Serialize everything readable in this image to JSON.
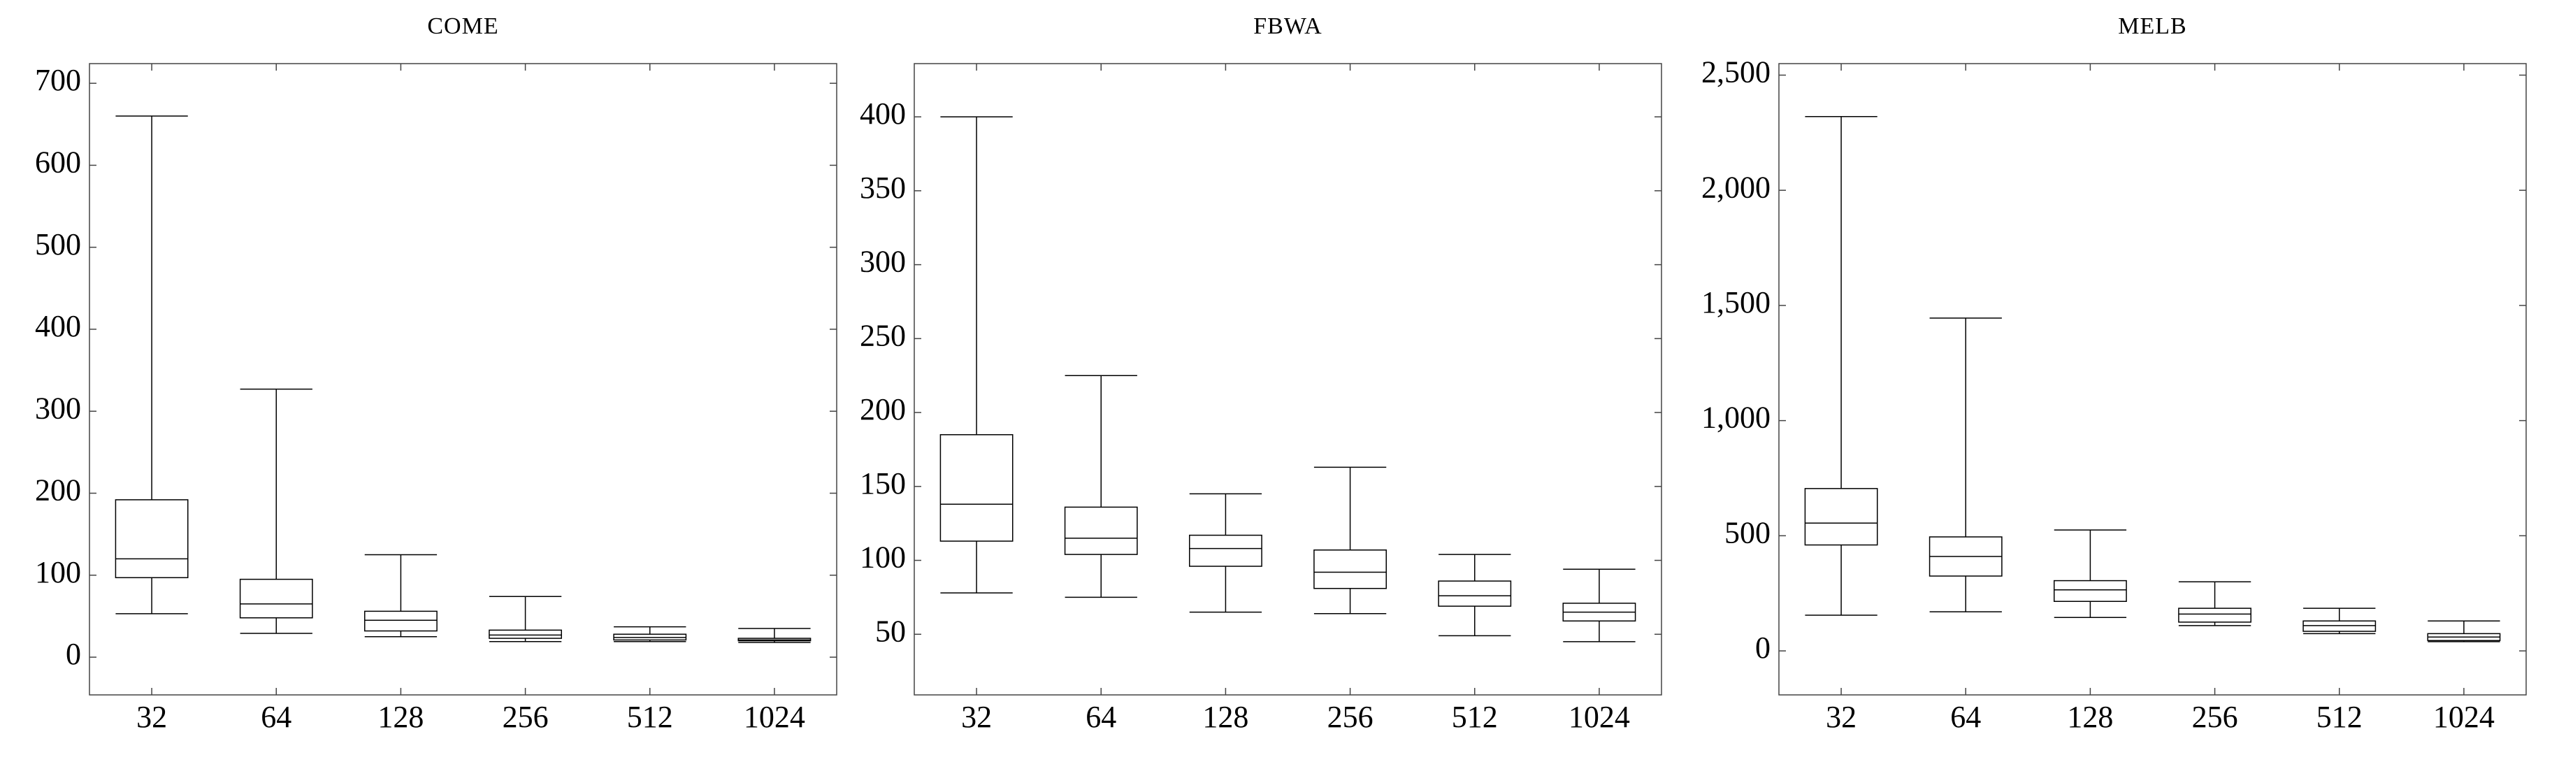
{
  "chart_data": [
    {
      "type": "box",
      "title": "COME",
      "categories": [
        "32",
        "64",
        "128",
        "256",
        "512",
        "1024"
      ],
      "min": [
        53,
        29,
        25,
        19,
        19,
        18
      ],
      "q1": [
        97,
        48,
        32,
        23,
        21,
        20
      ],
      "median": [
        120,
        65,
        45,
        27,
        24,
        21
      ],
      "q3": [
        192,
        95,
        56,
        33,
        28,
        23
      ],
      "max": [
        660,
        327,
        125,
        74,
        37,
        35
      ],
      "ylim": [
        -46,
        724
      ],
      "yticks": [
        0,
        100,
        200,
        300,
        400,
        500,
        600,
        700
      ],
      "color": "#000000"
    },
    {
      "type": "box",
      "title": "FBWA",
      "categories": [
        "32",
        "64",
        "128",
        "256",
        "512",
        "1024"
      ],
      "min": [
        78,
        75,
        65,
        64,
        49,
        45
      ],
      "q1": [
        113,
        104,
        96,
        81,
        69,
        59
      ],
      "median": [
        138,
        115,
        108,
        92,
        76,
        65
      ],
      "q3": [
        185,
        136,
        117,
        107,
        86,
        71
      ],
      "max": [
        400,
        225,
        145,
        163,
        104,
        94
      ],
      "ylim": [
        9,
        436
      ],
      "yticks": [
        50,
        100,
        150,
        200,
        250,
        300,
        350,
        400
      ],
      "color": "#000000"
    },
    {
      "type": "box",
      "title": "MELB",
      "categories": [
        "32",
        "64",
        "128",
        "256",
        "512",
        "1024"
      ],
      "min": [
        155,
        170,
        145,
        110,
        75,
        40
      ],
      "q1": [
        460,
        325,
        215,
        125,
        85,
        45
      ],
      "median": [
        555,
        410,
        265,
        160,
        110,
        60
      ],
      "q3": [
        705,
        495,
        305,
        185,
        130,
        75
      ],
      "max": [
        2320,
        1445,
        525,
        300,
        185,
        130
      ],
      "ylim": [
        -191,
        2550
      ],
      "yticks": [
        0,
        500,
        {
          "value": 1000,
          "label": "1,000"
        },
        {
          "value": 1500,
          "label": "1,500"
        },
        {
          "value": 2000,
          "label": "2,000"
        },
        {
          "value": 2500,
          "label": "2,500"
        }
      ],
      "color": "#000000"
    }
  ]
}
